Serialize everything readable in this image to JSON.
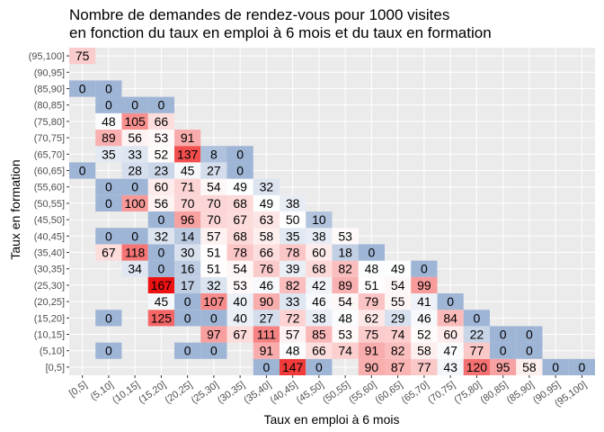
{
  "chart_data": {
    "type": "heatmap",
    "title_line1": "Nombre de demandes de rendez-vous pour 1000 visites",
    "title_line2": "en fonction du taux en emploi à 6 mois et du taux en formation",
    "xlabel": "Taux en emploi à 6 mois",
    "ylabel": "Taux en formation",
    "x_categories": [
      "[0,5]",
      "(5,10]",
      "(10,15]",
      "(15,20]",
      "(20,25]",
      "(25,30]",
      "(30,35]",
      "(35,40]",
      "(40,45]",
      "(45,50]",
      "(50,55]",
      "(55,60]",
      "(60,65]",
      "(65,70]",
      "(70,75]",
      "(75,80]",
      "(80,85]",
      "(85,90]",
      "(90,95]",
      "(95,100]"
    ],
    "y_categories": [
      "[0,5]",
      "(5,10]",
      "(10,15]",
      "(15,20]",
      "(20,25]",
      "(25,30]",
      "(30,35]",
      "(35,40]",
      "(40,45]",
      "(45,50]",
      "(50,55]",
      "(55,60]",
      "(60,65]",
      "(65,70]",
      "(70,75]",
      "(75,80]",
      "(80,85]",
      "(85,90]",
      "(90,95]",
      "(95,100]"
    ],
    "color_scale": {
      "low": "#9fb5d6",
      "mid": "#ffffff",
      "high": "#ee1111",
      "mid_value": 50,
      "max_value": 167
    },
    "background": "#ebebeb",
    "grid_color": "#ffffff",
    "cells": [
      {
        "x": "(10,15]",
        "y": "[0,5]",
        "value": null
      },
      {
        "x": "(35,40]",
        "y": "[0,5]",
        "value": 0
      },
      {
        "x": "(40,45]",
        "y": "[0,5]",
        "value": 147
      },
      {
        "x": "(45,50]",
        "y": "[0,5]",
        "value": 0
      },
      {
        "x": "(55,60]",
        "y": "[0,5]",
        "value": 90
      },
      {
        "x": "(60,65]",
        "y": "[0,5]",
        "value": 87
      },
      {
        "x": "(65,70]",
        "y": "[0,5]",
        "value": 77
      },
      {
        "x": "(70,75]",
        "y": "[0,5]",
        "value": 43
      },
      {
        "x": "(75,80]",
        "y": "[0,5]",
        "value": 120
      },
      {
        "x": "(80,85]",
        "y": "[0,5]",
        "value": 95
      },
      {
        "x": "(85,90]",
        "y": "[0,5]",
        "value": 58
      },
      {
        "x": "(90,95]",
        "y": "[0,5]",
        "value": 0
      },
      {
        "x": "(95,100]",
        "y": "[0,5]",
        "value": 0
      },
      {
        "x": "(5,10]",
        "y": "(5,10]",
        "value": 0
      },
      {
        "x": "(20,25]",
        "y": "(5,10]",
        "value": 0
      },
      {
        "x": "(25,30]",
        "y": "(5,10]",
        "value": 0
      },
      {
        "x": "(35,40]",
        "y": "(5,10]",
        "value": 91
      },
      {
        "x": "(40,45]",
        "y": "(5,10]",
        "value": 48
      },
      {
        "x": "(45,50]",
        "y": "(5,10]",
        "value": 66
      },
      {
        "x": "(50,55]",
        "y": "(5,10]",
        "value": 74
      },
      {
        "x": "(55,60]",
        "y": "(5,10]",
        "value": 91
      },
      {
        "x": "(60,65]",
        "y": "(5,10]",
        "value": 82
      },
      {
        "x": "(65,70]",
        "y": "(5,10]",
        "value": 58
      },
      {
        "x": "(70,75]",
        "y": "(5,10]",
        "value": 47
      },
      {
        "x": "(75,80]",
        "y": "(5,10]",
        "value": 77
      },
      {
        "x": "(80,85]",
        "y": "(5,10]",
        "value": 0
      },
      {
        "x": "(85,90]",
        "y": "(5,10]",
        "value": 0
      },
      {
        "x": "(25,30]",
        "y": "(10,15]",
        "value": 97
      },
      {
        "x": "(30,35]",
        "y": "(10,15]",
        "value": 67
      },
      {
        "x": "(35,40]",
        "y": "(10,15]",
        "value": 111
      },
      {
        "x": "(40,45]",
        "y": "(10,15]",
        "value": 57
      },
      {
        "x": "(45,50]",
        "y": "(10,15]",
        "value": 85
      },
      {
        "x": "(50,55]",
        "y": "(10,15]",
        "value": 53
      },
      {
        "x": "(55,60]",
        "y": "(10,15]",
        "value": 75
      },
      {
        "x": "(60,65]",
        "y": "(10,15]",
        "value": 74
      },
      {
        "x": "(65,70]",
        "y": "(10,15]",
        "value": 52
      },
      {
        "x": "(70,75]",
        "y": "(10,15]",
        "value": 60
      },
      {
        "x": "(75,80]",
        "y": "(10,15]",
        "value": 22
      },
      {
        "x": "(80,85]",
        "y": "(10,15]",
        "value": 0
      },
      {
        "x": "(85,90]",
        "y": "(10,15]",
        "value": 0
      },
      {
        "x": "(5,10]",
        "y": "(15,20]",
        "value": 0
      },
      {
        "x": "(15,20]",
        "y": "(15,20]",
        "value": 125
      },
      {
        "x": "(20,25]",
        "y": "(15,20]",
        "value": 0
      },
      {
        "x": "(25,30]",
        "y": "(15,20]",
        "value": 0
      },
      {
        "x": "(30,35]",
        "y": "(15,20]",
        "value": 40
      },
      {
        "x": "(35,40]",
        "y": "(15,20]",
        "value": 27
      },
      {
        "x": "(40,45]",
        "y": "(15,20]",
        "value": 72
      },
      {
        "x": "(45,50]",
        "y": "(15,20]",
        "value": 38
      },
      {
        "x": "(50,55]",
        "y": "(15,20]",
        "value": 48
      },
      {
        "x": "(55,60]",
        "y": "(15,20]",
        "value": 62
      },
      {
        "x": "(60,65]",
        "y": "(15,20]",
        "value": 29
      },
      {
        "x": "(65,70]",
        "y": "(15,20]",
        "value": 46
      },
      {
        "x": "(70,75]",
        "y": "(15,20]",
        "value": 84
      },
      {
        "x": "(75,80]",
        "y": "(15,20]",
        "value": 0
      },
      {
        "x": "(15,20]",
        "y": "(20,25]",
        "value": 45
      },
      {
        "x": "(20,25]",
        "y": "(20,25]",
        "value": 0
      },
      {
        "x": "(25,30]",
        "y": "(20,25]",
        "value": 107
      },
      {
        "x": "(30,35]",
        "y": "(20,25]",
        "value": 40
      },
      {
        "x": "(35,40]",
        "y": "(20,25]",
        "value": 90
      },
      {
        "x": "(40,45]",
        "y": "(20,25]",
        "value": 33
      },
      {
        "x": "(45,50]",
        "y": "(20,25]",
        "value": 46
      },
      {
        "x": "(50,55]",
        "y": "(20,25]",
        "value": 54
      },
      {
        "x": "(55,60]",
        "y": "(20,25]",
        "value": 79
      },
      {
        "x": "(60,65]",
        "y": "(20,25]",
        "value": 55
      },
      {
        "x": "(65,70]",
        "y": "(20,25]",
        "value": 41
      },
      {
        "x": "(70,75]",
        "y": "(20,25]",
        "value": 0
      },
      {
        "x": "(15,20]",
        "y": "(25,30]",
        "value": 167
      },
      {
        "x": "(20,25]",
        "y": "(25,30]",
        "value": 17
      },
      {
        "x": "(25,30]",
        "y": "(25,30]",
        "value": 32
      },
      {
        "x": "(30,35]",
        "y": "(25,30]",
        "value": 53
      },
      {
        "x": "(35,40]",
        "y": "(25,30]",
        "value": 46
      },
      {
        "x": "(40,45]",
        "y": "(25,30]",
        "value": 82
      },
      {
        "x": "(45,50]",
        "y": "(25,30]",
        "value": 42
      },
      {
        "x": "(50,55]",
        "y": "(25,30]",
        "value": 89
      },
      {
        "x": "(55,60]",
        "y": "(25,30]",
        "value": 51
      },
      {
        "x": "(60,65]",
        "y": "(25,30]",
        "value": 54
      },
      {
        "x": "(65,70]",
        "y": "(25,30]",
        "value": 99
      },
      {
        "x": "(10,15]",
        "y": "(30,35]",
        "value": 34
      },
      {
        "x": "(15,20]",
        "y": "(30,35]",
        "value": 0
      },
      {
        "x": "(20,25]",
        "y": "(30,35]",
        "value": 16
      },
      {
        "x": "(25,30]",
        "y": "(30,35]",
        "value": 51
      },
      {
        "x": "(30,35]",
        "y": "(30,35]",
        "value": 54
      },
      {
        "x": "(35,40]",
        "y": "(30,35]",
        "value": 76
      },
      {
        "x": "(40,45]",
        "y": "(30,35]",
        "value": 39
      },
      {
        "x": "(45,50]",
        "y": "(30,35]",
        "value": 68
      },
      {
        "x": "(50,55]",
        "y": "(30,35]",
        "value": 82
      },
      {
        "x": "(55,60]",
        "y": "(30,35]",
        "value": 48
      },
      {
        "x": "(60,65]",
        "y": "(30,35]",
        "value": 49
      },
      {
        "x": "(65,70]",
        "y": "(30,35]",
        "value": 0
      },
      {
        "x": "(5,10]",
        "y": "(35,40]",
        "value": 67
      },
      {
        "x": "(10,15]",
        "y": "(35,40]",
        "value": 118
      },
      {
        "x": "(15,20]",
        "y": "(35,40]",
        "value": 0
      },
      {
        "x": "(20,25]",
        "y": "(35,40]",
        "value": 30
      },
      {
        "x": "(25,30]",
        "y": "(35,40]",
        "value": 51
      },
      {
        "x": "(30,35]",
        "y": "(35,40]",
        "value": 78
      },
      {
        "x": "(35,40]",
        "y": "(35,40]",
        "value": 66
      },
      {
        "x": "(40,45]",
        "y": "(35,40]",
        "value": 78
      },
      {
        "x": "(45,50]",
        "y": "(35,40]",
        "value": 60
      },
      {
        "x": "(50,55]",
        "y": "(35,40]",
        "value": 18
      },
      {
        "x": "(55,60]",
        "y": "(35,40]",
        "value": 0
      },
      {
        "x": "(5,10]",
        "y": "(40,45]",
        "value": 0
      },
      {
        "x": "(10,15]",
        "y": "(40,45]",
        "value": 0
      },
      {
        "x": "(15,20]",
        "y": "(40,45]",
        "value": 32
      },
      {
        "x": "(20,25]",
        "y": "(40,45]",
        "value": 14
      },
      {
        "x": "(25,30]",
        "y": "(40,45]",
        "value": 57
      },
      {
        "x": "(30,35]",
        "y": "(40,45]",
        "value": 68
      },
      {
        "x": "(35,40]",
        "y": "(40,45]",
        "value": 58
      },
      {
        "x": "(40,45]",
        "y": "(40,45]",
        "value": 35
      },
      {
        "x": "(45,50]",
        "y": "(40,45]",
        "value": 38
      },
      {
        "x": "(50,55]",
        "y": "(40,45]",
        "value": 53
      },
      {
        "x": "(15,20]",
        "y": "(45,50]",
        "value": 0
      },
      {
        "x": "(20,25]",
        "y": "(45,50]",
        "value": 96
      },
      {
        "x": "(25,30]",
        "y": "(45,50]",
        "value": 70
      },
      {
        "x": "(30,35]",
        "y": "(45,50]",
        "value": 67
      },
      {
        "x": "(35,40]",
        "y": "(45,50]",
        "value": 63
      },
      {
        "x": "(40,45]",
        "y": "(45,50]",
        "value": 50
      },
      {
        "x": "(45,50]",
        "y": "(45,50]",
        "value": 10
      },
      {
        "x": "(5,10]",
        "y": "(50,55]",
        "value": 0
      },
      {
        "x": "(10,15]",
        "y": "(50,55]",
        "value": 100
      },
      {
        "x": "(15,20]",
        "y": "(50,55]",
        "value": 56
      },
      {
        "x": "(20,25]",
        "y": "(50,55]",
        "value": 70
      },
      {
        "x": "(25,30]",
        "y": "(50,55]",
        "value": 70
      },
      {
        "x": "(30,35]",
        "y": "(50,55]",
        "value": 68
      },
      {
        "x": "(35,40]",
        "y": "(50,55]",
        "value": 49
      },
      {
        "x": "(40,45]",
        "y": "(50,55]",
        "value": 38
      },
      {
        "x": "(5,10]",
        "y": "(55,60]",
        "value": 0
      },
      {
        "x": "(10,15]",
        "y": "(55,60]",
        "value": 0
      },
      {
        "x": "(15,20]",
        "y": "(55,60]",
        "value": 60
      },
      {
        "x": "(20,25]",
        "y": "(55,60]",
        "value": 71
      },
      {
        "x": "(25,30]",
        "y": "(55,60]",
        "value": 54
      },
      {
        "x": "(30,35]",
        "y": "(55,60]",
        "value": 49
      },
      {
        "x": "(35,40]",
        "y": "(55,60]",
        "value": 32
      },
      {
        "x": "[0,5]",
        "y": "(60,65]",
        "value": 0
      },
      {
        "x": "(10,15]",
        "y": "(60,65]",
        "value": 28
      },
      {
        "x": "(15,20]",
        "y": "(60,65]",
        "value": 23
      },
      {
        "x": "(20,25]",
        "y": "(60,65]",
        "value": 45
      },
      {
        "x": "(25,30]",
        "y": "(60,65]",
        "value": 27
      },
      {
        "x": "(30,35]",
        "y": "(60,65]",
        "value": 0
      },
      {
        "x": "(5,10]",
        "y": "(65,70]",
        "value": 35
      },
      {
        "x": "(10,15]",
        "y": "(65,70]",
        "value": 33
      },
      {
        "x": "(15,20]",
        "y": "(65,70]",
        "value": 52
      },
      {
        "x": "(20,25]",
        "y": "(65,70]",
        "value": 137
      },
      {
        "x": "(25,30]",
        "y": "(65,70]",
        "value": 8
      },
      {
        "x": "(30,35]",
        "y": "(65,70]",
        "value": 0
      },
      {
        "x": "(5,10]",
        "y": "(70,75]",
        "value": 89
      },
      {
        "x": "(10,15]",
        "y": "(70,75]",
        "value": 56
      },
      {
        "x": "(15,20]",
        "y": "(70,75]",
        "value": 53
      },
      {
        "x": "(20,25]",
        "y": "(70,75]",
        "value": 91
      },
      {
        "x": "(5,10]",
        "y": "(75,80]",
        "value": 48
      },
      {
        "x": "(10,15]",
        "y": "(75,80]",
        "value": 105
      },
      {
        "x": "(15,20]",
        "y": "(75,80]",
        "value": 66
      },
      {
        "x": "(5,10]",
        "y": "(80,85]",
        "value": 0
      },
      {
        "x": "(10,15]",
        "y": "(80,85]",
        "value": 0
      },
      {
        "x": "(15,20]",
        "y": "(80,85]",
        "value": 0
      },
      {
        "x": "[0,5]",
        "y": "(85,90]",
        "value": 0
      },
      {
        "x": "(5,10]",
        "y": "(85,90]",
        "value": 0
      },
      {
        "x": "[0,5]",
        "y": "(95,100]",
        "value": 75
      }
    ]
  }
}
